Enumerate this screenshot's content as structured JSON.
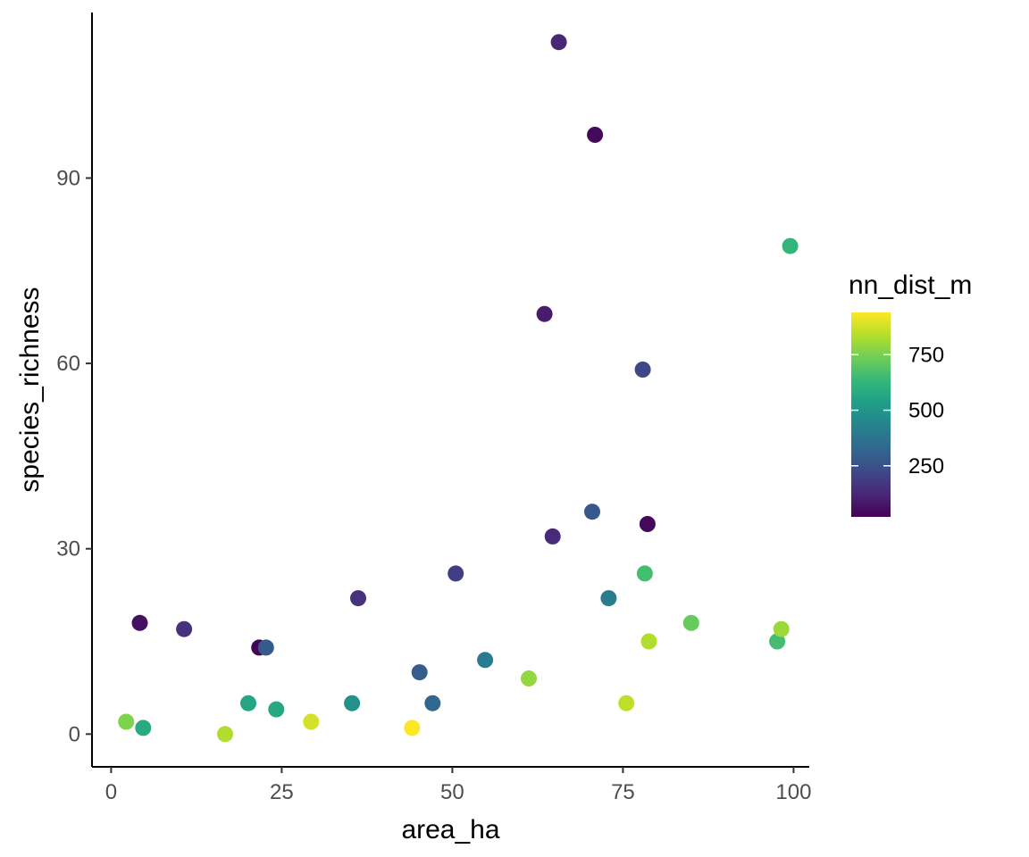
{
  "chart_data": {
    "type": "scatter",
    "xlabel": "area_ha",
    "ylabel": "species_richness",
    "xlim": [
      -2.8,
      102.3
    ],
    "ylim": [
      -5.3,
      116.8
    ],
    "x_ticks": [
      0,
      25,
      50,
      75,
      100
    ],
    "y_ticks": [
      0,
      30,
      60,
      90
    ],
    "x_tick_labels": [
      "0",
      "25",
      "50",
      "75",
      "100"
    ],
    "y_tick_labels": [
      "0",
      "30",
      "60",
      "90"
    ],
    "grid": false,
    "legend": {
      "title": "nn_dist_m",
      "placement": "right",
      "type": "colorbar",
      "min": 20,
      "max": 940,
      "breaks": [
        250,
        500,
        750
      ],
      "break_labels": [
        "250",
        "500",
        "750"
      ],
      "palette": [
        "#440154",
        "#482878",
        "#3e4989",
        "#31688e",
        "#26828e",
        "#1f9e89",
        "#35b779",
        "#6ece58",
        "#b5de2b",
        "#fde725"
      ]
    },
    "color_variable": "nn_dist_m",
    "points": [
      {
        "x": 2.2,
        "y": 2,
        "c": 760
      },
      {
        "x": 4.2,
        "y": 18,
        "c": 60
      },
      {
        "x": 4.7,
        "y": 1,
        "c": 580
      },
      {
        "x": 10.7,
        "y": 17,
        "c": 150
      },
      {
        "x": 16.7,
        "y": 0,
        "c": 830
      },
      {
        "x": 20.1,
        "y": 5,
        "c": 560
      },
      {
        "x": 21.7,
        "y": 14,
        "c": 30
      },
      {
        "x": 22.7,
        "y": 14,
        "c": 280
      },
      {
        "x": 24.2,
        "y": 4,
        "c": 570
      },
      {
        "x": 29.3,
        "y": 2,
        "c": 880
      },
      {
        "x": 35.3,
        "y": 5,
        "c": 480
      },
      {
        "x": 36.2,
        "y": 22,
        "c": 150
      },
      {
        "x": 44.1,
        "y": 1,
        "c": 940
      },
      {
        "x": 45.2,
        "y": 10,
        "c": 290
      },
      {
        "x": 47.1,
        "y": 5,
        "c": 330
      },
      {
        "x": 50.5,
        "y": 26,
        "c": 190
      },
      {
        "x": 54.8,
        "y": 12,
        "c": 400
      },
      {
        "x": 61.2,
        "y": 9,
        "c": 790
      },
      {
        "x": 63.5,
        "y": 68,
        "c": 90
      },
      {
        "x": 64.7,
        "y": 32,
        "c": 130
      },
      {
        "x": 65.6,
        "y": 112,
        "c": 120
      },
      {
        "x": 70.5,
        "y": 36,
        "c": 270
      },
      {
        "x": 70.9,
        "y": 97,
        "c": 40
      },
      {
        "x": 72.9,
        "y": 22,
        "c": 400
      },
      {
        "x": 75.5,
        "y": 5,
        "c": 850
      },
      {
        "x": 77.9,
        "y": 59,
        "c": 220
      },
      {
        "x": 78.2,
        "y": 26,
        "c": 660
      },
      {
        "x": 78.6,
        "y": 34,
        "c": 40
      },
      {
        "x": 78.8,
        "y": 15,
        "c": 830
      },
      {
        "x": 85.0,
        "y": 18,
        "c": 720
      },
      {
        "x": 97.6,
        "y": 15,
        "c": 660
      },
      {
        "x": 98.2,
        "y": 17,
        "c": 800
      },
      {
        "x": 99.5,
        "y": 79,
        "c": 620
      }
    ]
  }
}
